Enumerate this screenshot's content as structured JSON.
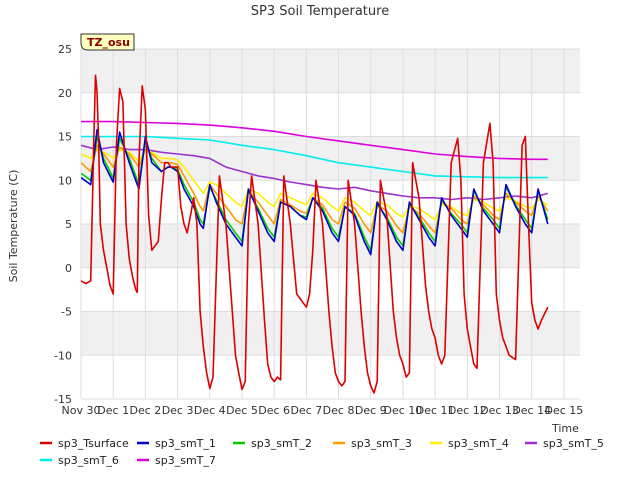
{
  "chart_data": {
    "type": "line",
    "title": "SP3 Soil Temperature",
    "xlabel": "Time",
    "ylabel": "Soil Temperature (C)",
    "tag": "TZ_osu",
    "xlim": [
      0,
      15.5
    ],
    "ylim": [
      -15,
      25
    ],
    "x_ticks": [
      {
        "pos": 0,
        "label": "Nov 30"
      },
      {
        "pos": 1,
        "label": "Dec 1"
      },
      {
        "pos": 2,
        "label": "Dec 2"
      },
      {
        "pos": 3,
        "label": "Dec 3"
      },
      {
        "pos": 4,
        "label": "Dec 4"
      },
      {
        "pos": 5,
        "label": "Dec 5"
      },
      {
        "pos": 6,
        "label": "Dec 6"
      },
      {
        "pos": 7,
        "label": "Dec 7"
      },
      {
        "pos": 8,
        "label": "Dec 8"
      },
      {
        "pos": 9,
        "label": "Dec 9"
      },
      {
        "pos": 10,
        "label": "Dec 10"
      },
      {
        "pos": 11,
        "label": "Dec 11"
      },
      {
        "pos": 12,
        "label": "Dec 12"
      },
      {
        "pos": 13,
        "label": "Dec 13"
      },
      {
        "pos": 14,
        "label": "Dec 14"
      },
      {
        "pos": 15,
        "label": "Dec 15"
      }
    ],
    "y_ticks": [
      -15,
      -10,
      -5,
      0,
      5,
      10,
      15,
      20,
      25
    ],
    "grid": true,
    "legend_position": "bottom",
    "series": [
      {
        "name": "sp3_Tsurface",
        "color": "#dd0000",
        "x": [
          0.0,
          0.15,
          0.3,
          0.4,
          0.45,
          0.5,
          0.55,
          0.6,
          0.7,
          0.8,
          0.9,
          1.0,
          1.1,
          1.2,
          1.3,
          1.4,
          1.5,
          1.6,
          1.7,
          1.75,
          1.8,
          1.9,
          2.0,
          2.1,
          2.2,
          2.4,
          2.5,
          2.6,
          2.7,
          2.8,
          2.9,
          3.0,
          3.1,
          3.2,
          3.3,
          3.4,
          3.5,
          3.6,
          3.7,
          3.8,
          3.9,
          4.0,
          4.1,
          4.3,
          4.5,
          4.7,
          4.8,
          4.9,
          5.0,
          5.1,
          5.2,
          5.3,
          5.5,
          5.7,
          5.8,
          5.9,
          6.0,
          6.1,
          6.2,
          6.3,
          6.5,
          6.7,
          6.8,
          6.9,
          7.0,
          7.1,
          7.2,
          7.3,
          7.5,
          7.7,
          7.8,
          7.9,
          8.0,
          8.1,
          8.2,
          8.3,
          8.5,
          8.7,
          8.8,
          8.9,
          9.0,
          9.1,
          9.2,
          9.3,
          9.5,
          9.7,
          9.8,
          9.9,
          10.0,
          10.1,
          10.2,
          10.3,
          10.5,
          10.7,
          10.8,
          10.9,
          11.0,
          11.1,
          11.2,
          11.3,
          11.5,
          11.7,
          11.8,
          11.9,
          12.0,
          12.1,
          12.2,
          12.3,
          12.5,
          12.7,
          12.8,
          12.9,
          13.0,
          13.1,
          13.2,
          13.3,
          13.5,
          13.7,
          13.8,
          13.9,
          14.0,
          14.1,
          14.2,
          14.3,
          14.5
        ],
        "y": [
          -1.5,
          -1.8,
          -1.5,
          15,
          22,
          20,
          14,
          5,
          2,
          0,
          -2,
          -3,
          14,
          20.5,
          19,
          5,
          1,
          -1,
          -2.5,
          -2.8,
          12,
          20.8,
          18,
          6,
          2,
          3,
          8,
          12,
          12,
          11.5,
          11.5,
          11.5,
          7,
          5,
          4,
          6,
          8,
          5,
          -5,
          -9,
          -12,
          -13.8,
          -12.5,
          10.5,
          5,
          -5,
          -10,
          -12,
          -13.9,
          -13,
          5,
          10.5,
          5,
          -6,
          -11,
          -12.5,
          -13,
          -12.5,
          -12.8,
          10.5,
          5,
          -3,
          -3.5,
          -4,
          -4.5,
          -3,
          2,
          10,
          5,
          -5,
          -9,
          -12,
          -13,
          -13.5,
          -13,
          10,
          5,
          -5,
          -9,
          -12,
          -13.5,
          -14.3,
          -13,
          10,
          6,
          -5,
          -8,
          -10,
          -11,
          -12.5,
          -12,
          12,
          8,
          -2,
          -5,
          -7,
          -8,
          -10,
          -11,
          -10,
          12,
          14.8,
          10,
          -3,
          -7,
          -9,
          -11,
          -11.5,
          12,
          16.5,
          12,
          -3,
          -6,
          -8,
          -9,
          -10,
          -10.5,
          14,
          15,
          5,
          -4,
          -6,
          -7,
          -6,
          -4.5
        ]
      },
      {
        "name": "sp3_smT_1",
        "color": "#0000cc",
        "x": [
          0.0,
          0.3,
          0.5,
          0.7,
          0.9,
          1.0,
          1.2,
          1.5,
          1.7,
          1.8,
          2.0,
          2.2,
          2.5,
          2.7,
          2.8,
          3.0,
          3.2,
          3.5,
          3.7,
          3.8,
          4.0,
          4.2,
          4.5,
          4.8,
          5.0,
          5.2,
          5.5,
          5.8,
          6.0,
          6.2,
          6.5,
          6.8,
          7.0,
          7.2,
          7.5,
          7.8,
          8.0,
          8.2,
          8.5,
          8.8,
          9.0,
          9.2,
          9.5,
          9.8,
          10.0,
          10.2,
          10.5,
          10.8,
          11.0,
          11.2,
          11.5,
          11.8,
          12.0,
          12.2,
          12.5,
          12.8,
          13.0,
          13.2,
          13.5,
          13.8,
          14.0,
          14.2,
          14.5
        ],
        "y": [
          10.3,
          9.5,
          15.8,
          12.0,
          10.5,
          9.8,
          15.5,
          12.0,
          10.0,
          9.0,
          15.0,
          12.0,
          11.0,
          11.5,
          11.5,
          11.0,
          9.0,
          7.0,
          5.0,
          4.5,
          9.5,
          7.5,
          5.0,
          3.5,
          2.5,
          9.0,
          6.5,
          4.0,
          3.0,
          7.5,
          7.0,
          6.0,
          5.5,
          8.0,
          6.5,
          4.0,
          3.0,
          7.0,
          6.0,
          3.0,
          1.5,
          7.5,
          5.5,
          3.0,
          2.0,
          7.5,
          5.5,
          3.5,
          2.5,
          8.0,
          6.0,
          4.5,
          3.5,
          9.0,
          6.5,
          5.0,
          4.0,
          9.5,
          7.0,
          5.0,
          4.0,
          9.0,
          5.0
        ]
      },
      {
        "name": "sp3_smT_2",
        "color": "#00cc00",
        "x": [
          0.0,
          0.3,
          0.5,
          0.7,
          0.9,
          1.0,
          1.2,
          1.5,
          1.7,
          1.8,
          2.0,
          2.2,
          2.5,
          2.7,
          2.8,
          3.0,
          3.2,
          3.5,
          3.7,
          3.8,
          4.0,
          4.2,
          4.5,
          4.8,
          5.0,
          5.2,
          5.5,
          5.8,
          6.0,
          6.2,
          6.5,
          6.8,
          7.0,
          7.2,
          7.5,
          7.8,
          8.0,
          8.2,
          8.5,
          8.8,
          9.0,
          9.2,
          9.5,
          9.8,
          10.0,
          10.2,
          10.5,
          10.8,
          11.0,
          11.2,
          11.5,
          11.8,
          12.0,
          12.2,
          12.5,
          12.8,
          13.0,
          13.2,
          13.5,
          13.8,
          14.0,
          14.2,
          14.5
        ],
        "y": [
          10.8,
          10.0,
          15.0,
          12.5,
          11.0,
          10.2,
          14.8,
          12.5,
          10.5,
          9.5,
          14.5,
          12.5,
          11.0,
          11.5,
          11.5,
          11.2,
          9.5,
          7.5,
          5.5,
          5.0,
          9.2,
          7.8,
          5.5,
          4.0,
          3.0,
          8.8,
          6.8,
          4.5,
          3.5,
          7.5,
          7.0,
          6.0,
          5.8,
          8.0,
          6.8,
          4.5,
          3.5,
          7.0,
          6.2,
          3.5,
          2.0,
          7.2,
          5.8,
          3.5,
          2.5,
          7.3,
          5.8,
          4.0,
          3.0,
          7.8,
          6.2,
          5.0,
          4.0,
          8.8,
          6.8,
          5.5,
          4.5,
          9.2,
          7.2,
          5.5,
          4.5,
          8.8,
          5.5
        ]
      },
      {
        "name": "sp3_smT_3",
        "color": "#ff9900",
        "x": [
          0.0,
          0.3,
          0.5,
          0.7,
          0.9,
          1.0,
          1.2,
          1.5,
          1.7,
          1.8,
          2.0,
          2.2,
          2.5,
          2.7,
          2.8,
          3.0,
          3.2,
          3.5,
          3.7,
          3.8,
          4.0,
          4.2,
          4.5,
          4.8,
          5.0,
          5.2,
          5.5,
          5.8,
          6.0,
          6.2,
          6.5,
          6.8,
          7.0,
          7.2,
          7.5,
          7.8,
          8.0,
          8.2,
          8.5,
          8.8,
          9.0,
          9.2,
          9.5,
          9.8,
          10.0,
          10.2,
          10.5,
          10.8,
          11.0,
          11.2,
          11.5,
          11.8,
          12.0,
          12.2,
          12.5,
          12.8,
          13.0,
          13.2,
          13.5,
          13.8,
          14.0,
          14.2,
          14.5
        ],
        "y": [
          12.0,
          11.0,
          14.0,
          13.0,
          12.0,
          11.5,
          13.8,
          13.0,
          12.0,
          11.5,
          13.5,
          13.0,
          12.0,
          12.0,
          12.0,
          11.8,
          10.5,
          8.5,
          7.0,
          6.5,
          9.5,
          8.5,
          7.0,
          5.5,
          5.0,
          8.8,
          7.5,
          6.0,
          5.0,
          7.8,
          7.2,
          6.5,
          6.2,
          8.0,
          7.2,
          5.5,
          5.0,
          7.5,
          6.8,
          5.0,
          4.0,
          7.2,
          6.5,
          4.8,
          4.0,
          7.0,
          6.2,
          4.8,
          4.0,
          7.5,
          6.8,
          5.5,
          5.0,
          8.2,
          7.2,
          6.0,
          5.5,
          8.5,
          7.5,
          6.5,
          6.0,
          8.2,
          6.5
        ]
      },
      {
        "name": "sp3_smT_4",
        "color": "#ffee00",
        "x": [
          0.0,
          0.3,
          0.5,
          0.7,
          0.9,
          1.0,
          1.2,
          1.5,
          1.7,
          1.8,
          2.0,
          2.2,
          2.5,
          2.7,
          2.8,
          3.0,
          3.2,
          3.5,
          3.7,
          3.8,
          4.0,
          4.2,
          4.5,
          4.8,
          5.0,
          5.2,
          5.5,
          5.8,
          6.0,
          6.2,
          6.5,
          6.8,
          7.0,
          7.2,
          7.5,
          7.8,
          8.0,
          8.2,
          8.5,
          8.8,
          9.0,
          9.2,
          9.5,
          9.8,
          10.0,
          10.2,
          10.5,
          10.8,
          11.0,
          11.2,
          11.5,
          11.8,
          12.0,
          12.2,
          12.5,
          12.8,
          13.0,
          13.2,
          13.5,
          13.8,
          14.0,
          14.2,
          14.5
        ],
        "y": [
          13.0,
          12.5,
          13.5,
          13.2,
          12.8,
          12.5,
          13.5,
          13.2,
          12.5,
          12.2,
          13.5,
          13.2,
          12.5,
          12.5,
          12.5,
          12.3,
          11.5,
          10.0,
          9.0,
          8.5,
          9.8,
          9.5,
          8.5,
          7.5,
          7.0,
          9.0,
          8.5,
          7.5,
          7.0,
          8.5,
          8.0,
          7.5,
          7.2,
          8.5,
          8.0,
          7.0,
          6.5,
          8.0,
          7.5,
          6.5,
          6.0,
          7.5,
          7.2,
          6.2,
          5.8,
          7.0,
          6.8,
          6.0,
          5.5,
          7.2,
          7.0,
          6.2,
          6.0,
          7.8,
          7.5,
          6.8,
          6.5,
          8.0,
          7.6,
          7.0,
          6.8,
          7.8,
          7.2
        ]
      },
      {
        "name": "sp3_smT_5",
        "color": "#9933cc",
        "x": [
          0.0,
          0.5,
          1.0,
          1.5,
          2.0,
          2.5,
          3.0,
          3.5,
          4.0,
          4.5,
          5.0,
          5.5,
          6.0,
          6.5,
          7.0,
          7.5,
          8.0,
          8.5,
          9.0,
          9.5,
          10.0,
          10.5,
          11.0,
          11.5,
          12.0,
          12.5,
          13.0,
          13.5,
          14.0,
          14.5
        ],
        "y": [
          14.0,
          13.5,
          13.8,
          13.5,
          13.5,
          13.2,
          13.0,
          12.8,
          12.5,
          11.5,
          11.0,
          10.5,
          10.2,
          9.8,
          9.5,
          9.2,
          9.0,
          9.2,
          8.8,
          8.5,
          8.2,
          8.0,
          8.0,
          7.8,
          8.0,
          7.8,
          8.0,
          8.2,
          8.0,
          8.5
        ]
      },
      {
        "name": "sp3_smT_6",
        "color": "#00eeee",
        "x": [
          0.0,
          1.0,
          2.0,
          3.0,
          4.0,
          5.0,
          6.0,
          7.0,
          8.0,
          9.0,
          10.0,
          11.0,
          12.0,
          13.0,
          14.0,
          14.5
        ],
        "y": [
          15.0,
          15.0,
          15.0,
          14.8,
          14.6,
          14.0,
          13.5,
          12.8,
          12.0,
          11.5,
          11.0,
          10.5,
          10.4,
          10.3,
          10.3,
          10.3
        ]
      },
      {
        "name": "sp3_smT_7",
        "color": "#dd00dd",
        "x": [
          0.0,
          1.0,
          2.0,
          3.0,
          4.0,
          5.0,
          6.0,
          7.0,
          8.0,
          9.0,
          10.0,
          11.0,
          12.0,
          13.0,
          14.0,
          14.5
        ],
        "y": [
          16.7,
          16.7,
          16.6,
          16.5,
          16.3,
          16.0,
          15.6,
          15.0,
          14.5,
          14.0,
          13.5,
          13.0,
          12.7,
          12.5,
          12.4,
          12.4
        ]
      }
    ]
  }
}
